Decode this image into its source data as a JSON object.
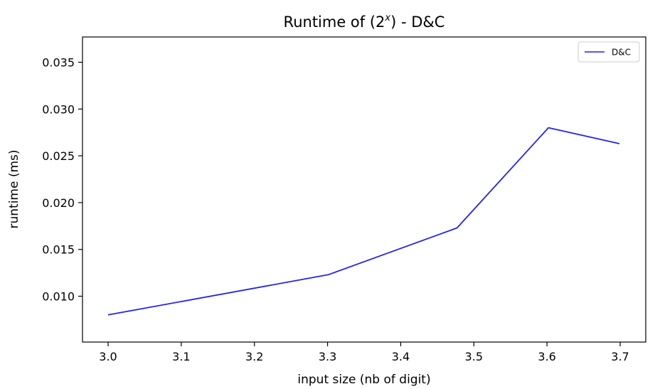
{
  "chart_data": {
    "type": "line",
    "title": {
      "prefix": "Runtime of (2",
      "superscript": "x",
      "suffix": ") - D&C"
    },
    "xlabel": "input size (nb of digit)",
    "ylabel": "runtime (ms)",
    "xlim": [
      2.965,
      3.735
    ],
    "ylim": [
      0.0051,
      0.0377
    ],
    "xticks": [
      {
        "value": 3.0,
        "label": "3.0"
      },
      {
        "value": 3.1,
        "label": "3.1"
      },
      {
        "value": 3.2,
        "label": "3.2"
      },
      {
        "value": 3.3,
        "label": "3.3"
      },
      {
        "value": 3.4,
        "label": "3.4"
      },
      {
        "value": 3.5,
        "label": "3.5"
      },
      {
        "value": 3.6,
        "label": "3.6"
      },
      {
        "value": 3.7,
        "label": "3.7"
      }
    ],
    "yticks": [
      {
        "value": 0.01,
        "label": "0.010"
      },
      {
        "value": 0.015,
        "label": "0.015"
      },
      {
        "value": 0.02,
        "label": "0.020"
      },
      {
        "value": 0.025,
        "label": "0.025"
      },
      {
        "value": 0.03,
        "label": "0.030"
      },
      {
        "value": 0.035,
        "label": "0.035"
      }
    ],
    "grid": false,
    "legend_position": "top-right",
    "series": [
      {
        "name": "D&C",
        "color": "#2222ee",
        "x": [
          3.0,
          3.301,
          3.477,
          3.602,
          3.699
        ],
        "y": [
          0.008,
          0.0123,
          0.0173,
          0.028,
          0.0263
        ]
      }
    ]
  }
}
